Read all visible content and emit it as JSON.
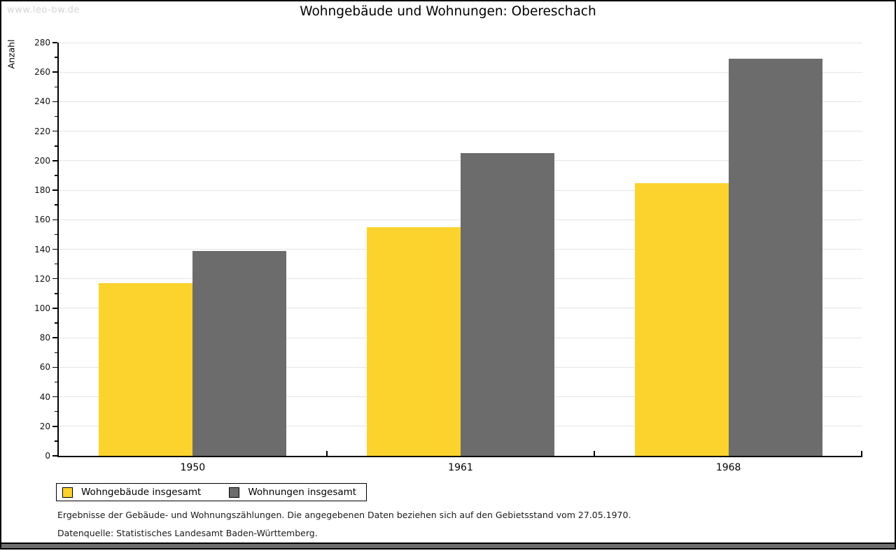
{
  "watermark": "www.leo-bw.de",
  "title": "Wohngebäude und Wohnungen: Obereschach",
  "chart_data": {
    "type": "bar",
    "title": "Wohngebäude und Wohnungen: Obereschach",
    "xlabel": "",
    "ylabel": "Anzahl",
    "categories": [
      "1950",
      "1961",
      "1968"
    ],
    "series": [
      {
        "name": "Wohngebäude insgesamt",
        "color": "#fcd32c",
        "values": [
          117,
          155,
          185
        ]
      },
      {
        "name": "Wohnungen insgesamt",
        "color": "#6c6c6c",
        "values": [
          139,
          205,
          269
        ]
      }
    ],
    "ylim": [
      0,
      280
    ],
    "ytick_step": 20,
    "ytick_minor_step": 10,
    "grid": true,
    "gridline_color": "#e4e4e4",
    "legend_position": "bottom"
  },
  "legend": {
    "items": [
      {
        "label": "Wohngebäude insgesamt",
        "color": "#fcd32c"
      },
      {
        "label": "Wohnungen insgesamt",
        "color": "#6c6c6c"
      }
    ]
  },
  "footer": {
    "line1": "Ergebnisse der Gebäude- und Wohnungszählungen. Die angegebenen Daten beziehen sich auf den Gebietsstand vom 27.05.1970.",
    "line2": "Datenquelle: Statistisches Landesamt Baden-Württemberg."
  }
}
